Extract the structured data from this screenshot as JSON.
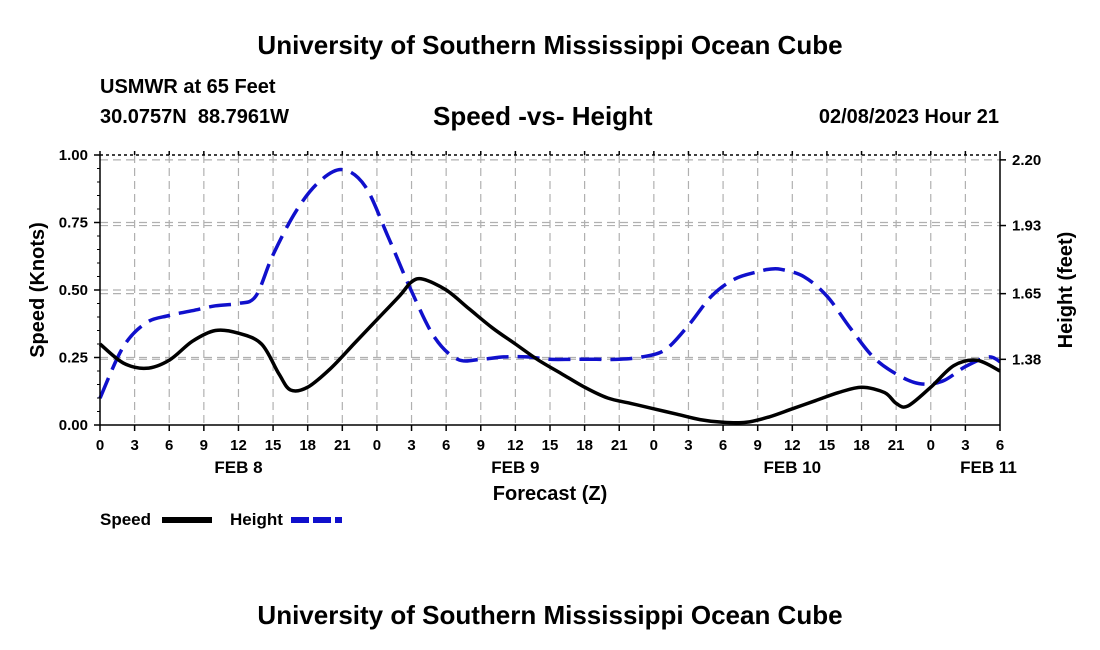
{
  "header": {
    "title_top": "University of Southern Mississippi Ocean Cube",
    "station": "USMWR at 65 Feet",
    "coords": "30.0757N  88.7961W",
    "plot_title": "Speed -vs- Height",
    "datetime": "02/08/2023 Hour 21",
    "title_bottom": "University of Southern Mississippi Ocean Cube"
  },
  "legend": {
    "speed_label": "Speed",
    "height_label": "Height"
  },
  "colors": {
    "speed": "#000000",
    "height": "#1010cc",
    "grid": "#b0b0b0"
  },
  "chart_data": {
    "type": "line",
    "title": "Speed -vs- Height",
    "xlabel": "Forecast (Z)",
    "ylabel_left": "Speed (Knots)",
    "ylabel_right": "Height (feet)",
    "x_unit": "hours since Feb 8 00Z",
    "xlim": [
      0,
      78
    ],
    "ylim_left": [
      0,
      1.0
    ],
    "ylim_right": [
      1.11,
      2.22
    ],
    "grid": true,
    "x_tick_labels": [
      "0",
      "3",
      "6",
      "9",
      "12",
      "15",
      "18",
      "21",
      "0",
      "3",
      "6",
      "9",
      "12",
      "15",
      "18",
      "21",
      "0",
      "3",
      "6",
      "9",
      "12",
      "15",
      "18",
      "21",
      "0",
      "3",
      "6"
    ],
    "date_labels": [
      {
        "hour": 12,
        "label": "FEB 8"
      },
      {
        "hour": 36,
        "label": "FEB 9"
      },
      {
        "hour": 60,
        "label": "FEB 10"
      },
      {
        "hour": 77,
        "label": "FEB 11"
      }
    ],
    "y_left_ticks": [
      "0.00",
      "0.25",
      "0.50",
      "0.75",
      "1.00"
    ],
    "y_right_ticks": [
      "1.38",
      "1.65",
      "1.93",
      "2.20"
    ],
    "series": [
      {
        "name": "Speed",
        "axis": "left",
        "style": "solid",
        "x": [
          0,
          2,
          4,
          6,
          8,
          10,
          12,
          14,
          15.5,
          16.5,
          18,
          20,
          22,
          24,
          26,
          27,
          28,
          30,
          32,
          34,
          36,
          38,
          40,
          42,
          44,
          46,
          48,
          50,
          52,
          54,
          56,
          58,
          60,
          62,
          64,
          66,
          68,
          69,
          70,
          72,
          74,
          76,
          78
        ],
        "values": [
          0.3,
          0.23,
          0.21,
          0.24,
          0.31,
          0.35,
          0.34,
          0.3,
          0.19,
          0.13,
          0.14,
          0.21,
          0.3,
          0.39,
          0.48,
          0.53,
          0.54,
          0.5,
          0.43,
          0.36,
          0.3,
          0.24,
          0.19,
          0.14,
          0.1,
          0.08,
          0.06,
          0.04,
          0.02,
          0.01,
          0.01,
          0.03,
          0.06,
          0.09,
          0.12,
          0.14,
          0.12,
          0.08,
          0.07,
          0.14,
          0.22,
          0.24,
          0.2
        ]
      },
      {
        "name": "Height",
        "axis": "right",
        "style": "dashed",
        "x": [
          0,
          2,
          4,
          6,
          8,
          10,
          12,
          13.5,
          15,
          17,
          19,
          21,
          23,
          25,
          27,
          29,
          31,
          33,
          35,
          37,
          39,
          41,
          43,
          45,
          47,
          49,
          51,
          53,
          55,
          57,
          58,
          59,
          61,
          63,
          65,
          67,
          69,
          71,
          73,
          75,
          77,
          78
        ],
        "values": [
          1.22,
          1.43,
          1.53,
          1.56,
          1.58,
          1.6,
          1.61,
          1.64,
          1.81,
          1.99,
          2.11,
          2.16,
          2.09,
          1.88,
          1.66,
          1.47,
          1.38,
          1.38,
          1.39,
          1.39,
          1.38,
          1.38,
          1.38,
          1.38,
          1.39,
          1.42,
          1.52,
          1.64,
          1.71,
          1.74,
          1.75,
          1.75,
          1.72,
          1.64,
          1.51,
          1.39,
          1.32,
          1.28,
          1.29,
          1.35,
          1.39,
          1.37
        ]
      }
    ]
  }
}
